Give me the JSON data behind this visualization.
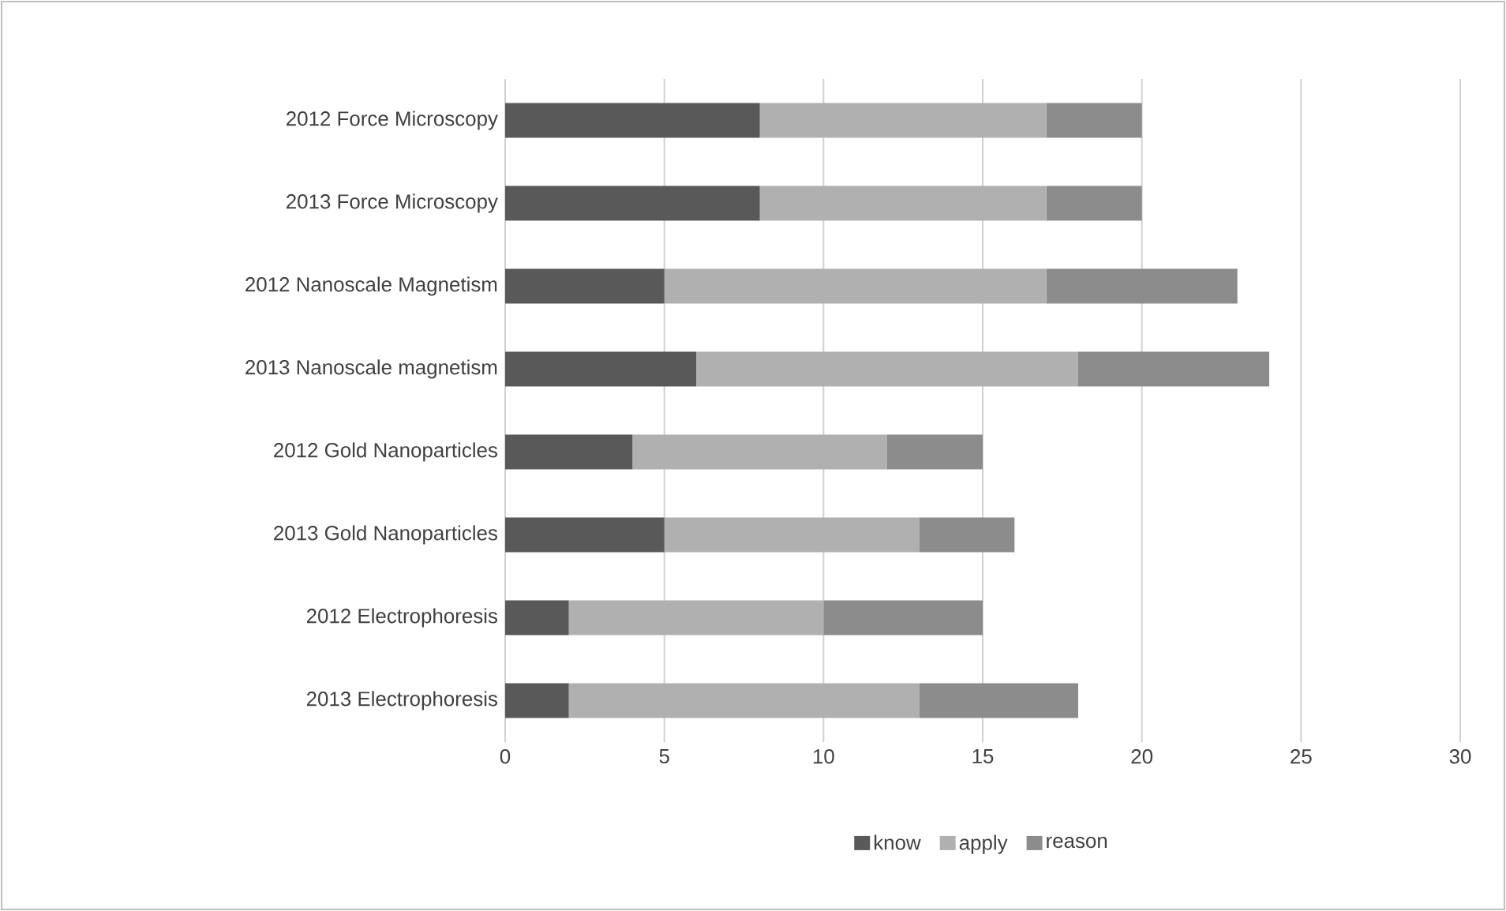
{
  "chart_data": {
    "type": "bar",
    "orientation": "horizontal",
    "stacked": true,
    "categories": [
      "2012 Force Microscopy",
      "2013 Force Microscopy",
      "2012 Nanoscale Magnetism",
      "2013 Nanoscale magnetism",
      "2012 Gold Nanoparticles",
      "2013 Gold Nanoparticles",
      "2012 Electrophoresis",
      "2013 Electrophoresis"
    ],
    "series": [
      {
        "name": "know",
        "color": "#595959",
        "values": [
          8,
          8,
          5,
          6,
          4,
          5,
          2,
          2
        ]
      },
      {
        "name": "apply",
        "color": "#b0b0b0",
        "values": [
          9,
          9,
          12,
          12,
          8,
          8,
          8,
          11
        ]
      },
      {
        "name": "reason",
        "color": "#8c8c8c",
        "values": [
          3,
          3,
          6,
          6,
          3,
          3,
          5,
          5
        ]
      }
    ],
    "xlim": [
      0,
      30
    ],
    "xticks": [
      0,
      5,
      10,
      15,
      20,
      25,
      30
    ],
    "grid": "x",
    "legend": "bottom"
  }
}
